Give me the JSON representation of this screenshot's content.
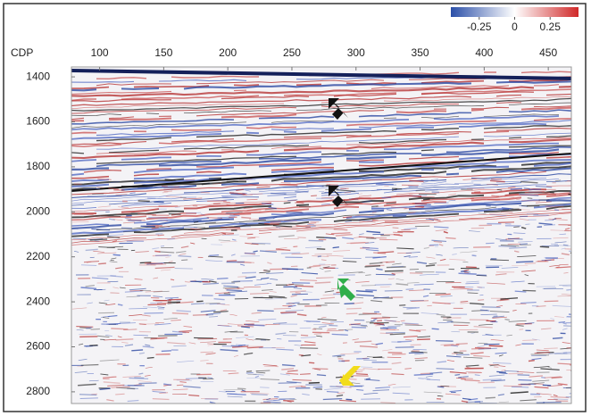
{
  "chart_data": {
    "type": "seismic",
    "x_label": "CDP",
    "xlim": [
      78,
      468
    ],
    "xticks": [
      100,
      150,
      200,
      250,
      300,
      350,
      400,
      450
    ],
    "ylim": [
      1356,
      2852
    ],
    "yticks": [
      1400,
      1600,
      1800,
      2000,
      2200,
      2400,
      2600,
      2800
    ],
    "colorbar": {
      "clim": [
        -0.45,
        0.45
      ],
      "ticks": [
        -0.25,
        0,
        0.25
      ]
    }
  }
}
